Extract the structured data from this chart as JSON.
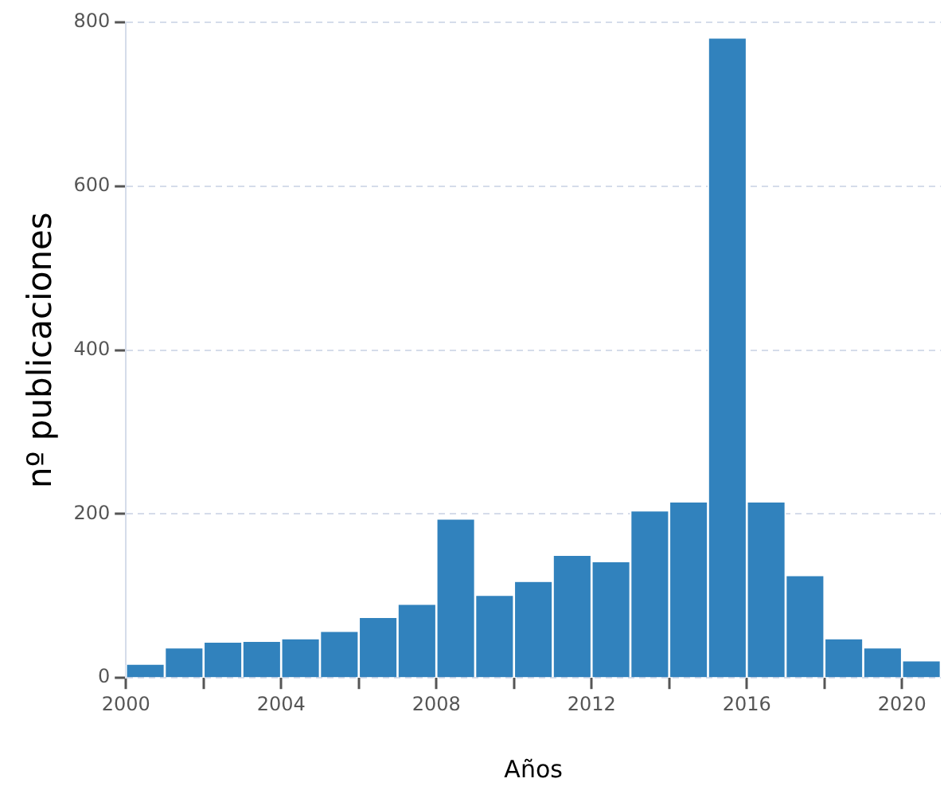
{
  "chart_data": {
    "type": "histogram",
    "xlabel": "Años",
    "ylabel": "nº publicaciones",
    "bins": [
      2000,
      2001,
      2002,
      2003,
      2004,
      2005,
      2006,
      2007,
      2008,
      2009,
      2010,
      2011,
      2012,
      2013,
      2014,
      2015,
      2016,
      2017,
      2018,
      2019,
      2020,
      2021
    ],
    "values": [
      16,
      36,
      43,
      44,
      47,
      56,
      73,
      89,
      193,
      100,
      117,
      149,
      141,
      203,
      214,
      780,
      214,
      124,
      47,
      36,
      20
    ],
    "color": "#3182bd",
    "xlim": [
      2000,
      2021
    ],
    "xticks": [
      2000,
      {
        "value": 2002,
        "label": null
      },
      2004,
      {
        "value": 2006,
        "label": null
      },
      2008,
      {
        "value": 2010,
        "label": null
      },
      2012,
      {
        "value": 2014,
        "label": null
      },
      2016,
      {
        "value": 2018,
        "label": null
      },
      2020
    ],
    "ylim": [
      0,
      800
    ],
    "yticks": [
      0,
      200,
      400,
      600,
      800
    ],
    "grid": "y"
  }
}
